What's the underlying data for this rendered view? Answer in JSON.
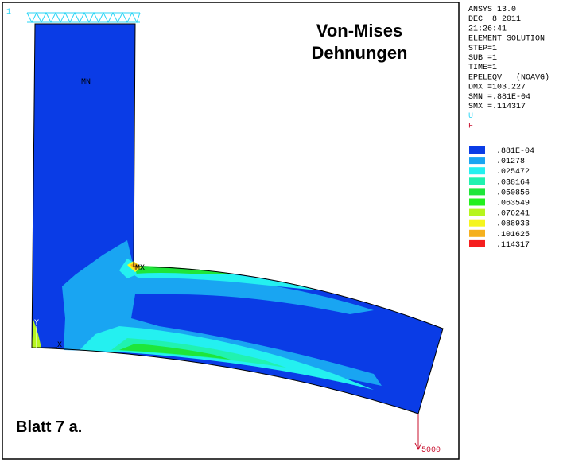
{
  "viewport": {
    "number": "1",
    "title": [
      "Von-Mises",
      "Dehnungen"
    ],
    "labels": {
      "min": "MN",
      "max": "MX",
      "y_axis": "Y",
      "x_axis": "X"
    },
    "caption": "Blatt 7 a.",
    "force_label": "5000"
  },
  "info": {
    "lines": [
      "ANSYS 13.0",
      "DEC  8 2011",
      "21:26:41",
      "ELEMENT SOLUTION",
      "STEP=1",
      "SUB =1",
      "TIME=1",
      "EPELEQV   (NOAVG)",
      "DMX =103.227",
      "SMN =.881E-04",
      "SMX =.114317"
    ],
    "u": "U",
    "f": "F"
  },
  "legend": {
    "items": [
      {
        "color": "#0a3ce6",
        "label": ".881E-04"
      },
      {
        "color": "#19a5f2",
        "label": ".01278"
      },
      {
        "color": "#24f0f0",
        "label": ".025472"
      },
      {
        "color": "#20f2b0",
        "label": ".038164"
      },
      {
        "color": "#1ee63a",
        "label": ".050856"
      },
      {
        "color": "#23f01e",
        "label": ".063549"
      },
      {
        "color": "#b6f51e",
        "label": ".076241"
      },
      {
        "color": "#f5f51e",
        "label": ".088933"
      },
      {
        "color": "#f5b01e",
        "label": ".101625"
      },
      {
        "color": "#f51e1e",
        "label": ".114317"
      }
    ]
  }
}
